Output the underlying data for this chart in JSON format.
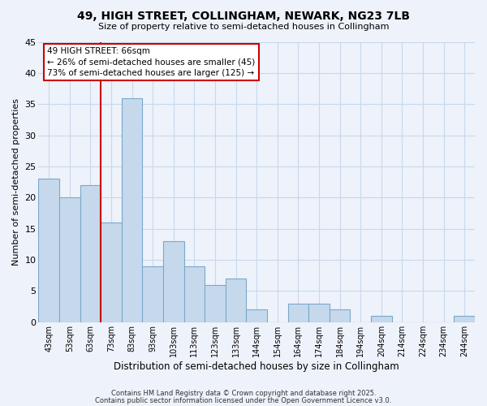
{
  "title": "49, HIGH STREET, COLLINGHAM, NEWARK, NG23 7LB",
  "subtitle": "Size of property relative to semi-detached houses in Collingham",
  "xlabel": "Distribution of semi-detached houses by size in Collingham",
  "ylabel": "Number of semi-detached properties",
  "categories": [
    "43sqm",
    "53sqm",
    "63sqm",
    "73sqm",
    "83sqm",
    "93sqm",
    "103sqm",
    "113sqm",
    "123sqm",
    "133sqm",
    "144sqm",
    "154sqm",
    "164sqm",
    "174sqm",
    "184sqm",
    "194sqm",
    "204sqm",
    "214sqm",
    "224sqm",
    "234sqm",
    "244sqm"
  ],
  "values": [
    23,
    20,
    22,
    16,
    36,
    9,
    13,
    9,
    6,
    7,
    2,
    0,
    3,
    3,
    2,
    0,
    1,
    0,
    0,
    0,
    1
  ],
  "bar_color": "#c6d9ec",
  "bar_edge_color": "#7aa8cc",
  "grid_color": "#c8d8ec",
  "background_color": "#eef2fa",
  "vline_x_index": 2,
  "vline_color": "#cc0000",
  "annotation_title": "49 HIGH STREET: 66sqm",
  "annotation_line1": "← 26% of semi-detached houses are smaller (45)",
  "annotation_line2": "73% of semi-detached houses are larger (125) →",
  "annotation_box_facecolor": "#ffffff",
  "annotation_box_edgecolor": "#cc0000",
  "ylim": [
    0,
    45
  ],
  "yticks": [
    0,
    5,
    10,
    15,
    20,
    25,
    30,
    35,
    40,
    45
  ],
  "footer1": "Contains HM Land Registry data © Crown copyright and database right 2025.",
  "footer2": "Contains public sector information licensed under the Open Government Licence v3.0."
}
